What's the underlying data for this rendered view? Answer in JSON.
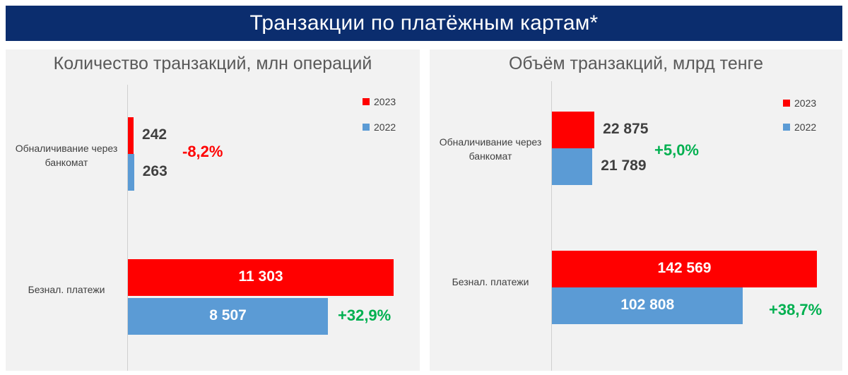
{
  "header": {
    "title": "Транзакции по платёжным картам*"
  },
  "colors": {
    "s2023": "#ff0000",
    "s2022": "#5b9bd5",
    "up": "#00b050",
    "down": "#ff0000"
  },
  "chart_data": [
    {
      "type": "bar",
      "orientation": "horizontal",
      "title": "Количество транзакций, млн операций",
      "categories": [
        "Обналичивание через банкомат",
        "Безнал. платежи"
      ],
      "series": [
        {
          "name": "2023",
          "values": [
            242,
            11303
          ],
          "labels": [
            "242",
            "11 303"
          ]
        },
        {
          "name": "2022",
          "values": [
            263,
            8507
          ],
          "labels": [
            "263",
            "8 507"
          ]
        }
      ],
      "changes": [
        "-8,2%",
        "+32,9%"
      ],
      "legend": "top-right",
      "xlim": [
        0,
        11600
      ],
      "grid": false
    },
    {
      "type": "bar",
      "orientation": "horizontal",
      "title": "Объём транзакций, млрд тенге",
      "categories": [
        "Обналичивание через банкомат",
        "Безнал. платежи"
      ],
      "series": [
        {
          "name": "2023",
          "values": [
            22875,
            142569
          ],
          "labels": [
            "22 875",
            "142 569"
          ]
        },
        {
          "name": "2022",
          "values": [
            21789,
            102808
          ],
          "labels": [
            "21 789",
            "102 808"
          ]
        }
      ],
      "changes": [
        "+5,0%",
        "+38,7%"
      ],
      "legend": "top-right",
      "xlim": [
        0,
        146000
      ],
      "grid": false
    }
  ]
}
